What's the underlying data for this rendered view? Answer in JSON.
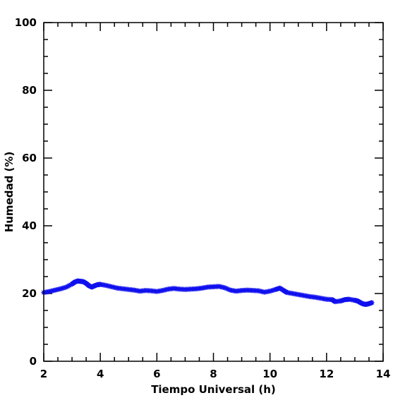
{
  "chart_data": {
    "type": "scatter",
    "title": "",
    "xlabel": "Tiempo Universal (h)",
    "ylabel": "Humedad (%)",
    "xlim": [
      2,
      14
    ],
    "ylim": [
      0,
      100
    ],
    "xticks": [
      2,
      4,
      6,
      8,
      10,
      12,
      14
    ],
    "yticks": [
      0,
      20,
      40,
      60,
      80,
      100
    ],
    "xtick_labels": [
      "2",
      "4",
      "6",
      "8",
      "10",
      "12",
      "14"
    ],
    "ytick_labels": [
      "0",
      "20",
      "40",
      "60",
      "80",
      "100"
    ],
    "grid": false,
    "marker": "asterisk",
    "colors": {
      "series": "#1010ee",
      "axes": "#000000"
    },
    "series": [
      {
        "x": [
          2.0,
          2.2,
          2.4,
          2.6,
          2.8,
          3.0,
          3.1,
          3.2,
          3.3,
          3.4,
          3.5,
          3.6,
          3.7,
          3.8,
          3.9,
          4.0,
          4.2,
          4.4,
          4.6,
          4.8,
          5.0,
          5.2,
          5.4,
          5.6,
          5.8,
          6.0,
          6.2,
          6.4,
          6.6,
          6.8,
          7.0,
          7.2,
          7.4,
          7.6,
          7.8,
          8.0,
          8.2,
          8.4,
          8.6,
          8.8,
          9.0,
          9.2,
          9.4,
          9.6,
          9.8,
          10.0,
          10.2,
          10.35,
          10.5,
          10.6,
          10.8,
          11.0,
          11.2,
          11.4,
          11.6,
          11.8,
          12.0,
          12.2,
          12.3,
          12.5,
          12.65,
          12.8,
          13.0,
          13.1,
          13.2,
          13.3,
          13.4,
          13.5,
          13.6
        ],
        "y": [
          20.3,
          20.6,
          21.0,
          21.4,
          21.9,
          22.8,
          23.4,
          23.7,
          23.6,
          23.5,
          23.0,
          22.3,
          21.9,
          22.3,
          22.6,
          22.7,
          22.4,
          22.0,
          21.6,
          21.4,
          21.2,
          21.0,
          20.7,
          20.9,
          20.8,
          20.6,
          20.9,
          21.3,
          21.5,
          21.3,
          21.2,
          21.3,
          21.4,
          21.6,
          21.9,
          22.0,
          22.1,
          21.7,
          21.0,
          20.7,
          20.9,
          21.0,
          20.9,
          20.8,
          20.4,
          20.7,
          21.2,
          21.6,
          20.8,
          20.3,
          20.0,
          19.7,
          19.4,
          19.1,
          18.9,
          18.6,
          18.3,
          18.2,
          17.6,
          17.8,
          18.2,
          18.3,
          18.0,
          17.8,
          17.3,
          16.9,
          16.8,
          17.0,
          17.3
        ]
      }
    ]
  }
}
